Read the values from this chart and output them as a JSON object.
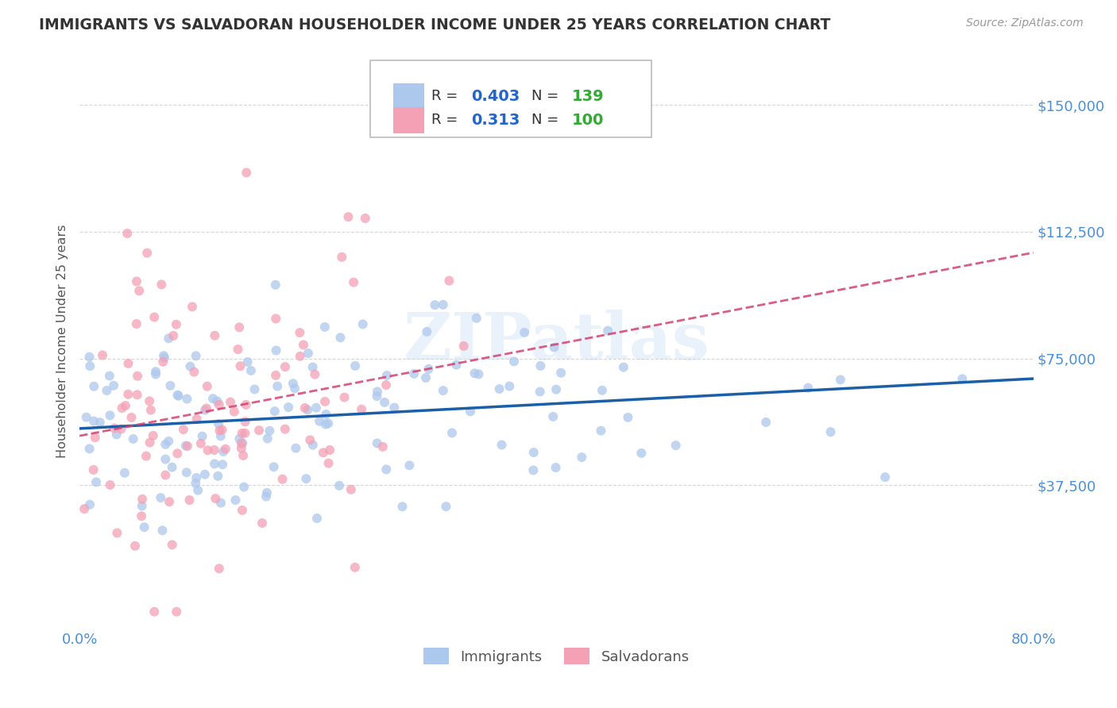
{
  "title": "IMMIGRANTS VS SALVADORAN HOUSEHOLDER INCOME UNDER 25 YEARS CORRELATION CHART",
  "source": "Source: ZipAtlas.com",
  "ylabel": "Householder Income Under 25 years",
  "xmin": 0.0,
  "xmax": 0.8,
  "ymin": -5000,
  "ymax": 165000,
  "yticks": [
    37500,
    75000,
    112500,
    150000
  ],
  "ytick_labels": [
    "$37,500",
    "$75,000",
    "$112,500",
    "$150,000"
  ],
  "xticks": [
    0.0,
    0.1,
    0.2,
    0.3,
    0.4,
    0.5,
    0.6,
    0.7,
    0.8
  ],
  "xtick_labels": [
    "0.0%",
    "",
    "",
    "",
    "",
    "",
    "",
    "",
    "80.0%"
  ],
  "immigrants_R": 0.403,
  "immigrants_N": 139,
  "salvadorans_R": 0.313,
  "salvadorans_N": 100,
  "immigrants_color": "#adc8ed",
  "salvadorans_color": "#f4a0b5",
  "trend_immigrants_color": "#1a5fa8",
  "trend_salvadorans_color": "#d44070",
  "watermark": "ZIPatlas",
  "background_color": "#ffffff",
  "grid_color": "#cccccc",
  "axis_label_color": "#4a90d9",
  "title_color": "#333333",
  "legend_R_color": "#2266cc",
  "legend_N_color": "#33aa33",
  "source_color": "#999999"
}
